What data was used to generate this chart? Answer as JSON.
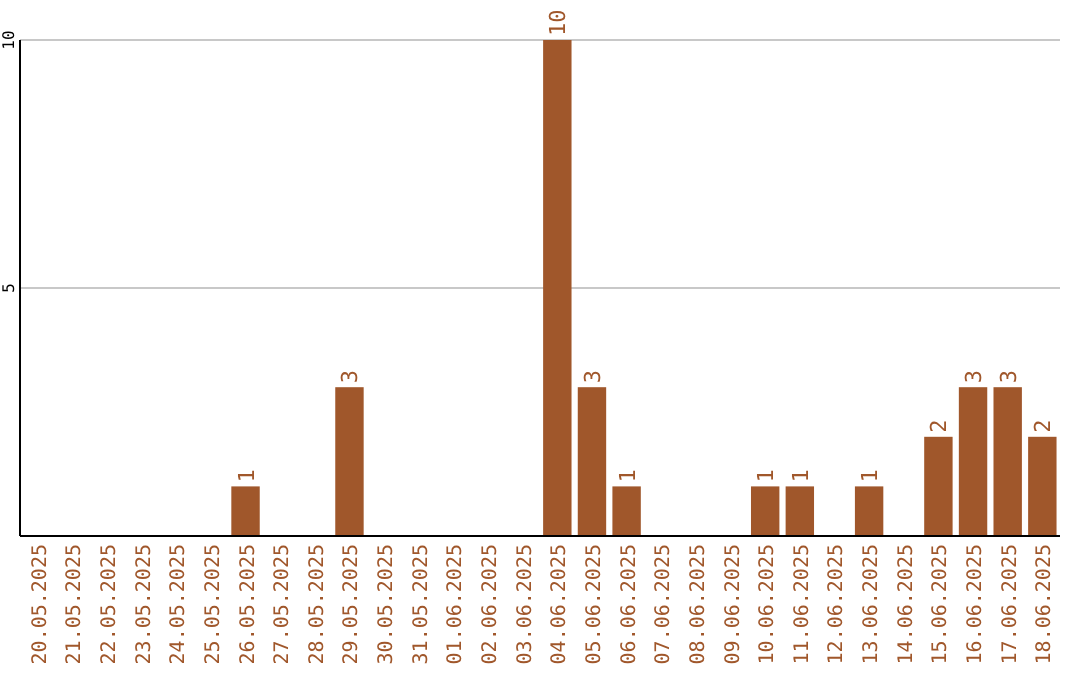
{
  "chart_data": {
    "type": "bar",
    "categories": [
      "20.05.2025",
      "21.05.2025",
      "22.05.2025",
      "23.05.2025",
      "24.05.2025",
      "25.05.2025",
      "26.05.2025",
      "27.05.2025",
      "28.05.2025",
      "29.05.2025",
      "30.05.2025",
      "31.05.2025",
      "01.06.2025",
      "02.06.2025",
      "03.06.2025",
      "04.06.2025",
      "05.06.2025",
      "06.06.2025",
      "07.06.2025",
      "08.06.2025",
      "09.06.2025",
      "10.06.2025",
      "11.06.2025",
      "12.06.2025",
      "13.06.2025",
      "14.06.2025",
      "15.06.2025",
      "16.06.2025",
      "17.06.2025",
      "18.06.2025"
    ],
    "values": [
      0,
      0,
      0,
      0,
      0,
      0,
      1,
      0,
      0,
      3,
      0,
      0,
      0,
      0,
      0,
      10,
      3,
      1,
      0,
      0,
      0,
      1,
      1,
      0,
      1,
      0,
      2,
      3,
      3,
      2
    ],
    "value_labels": [
      null,
      null,
      null,
      null,
      null,
      null,
      "1",
      null,
      null,
      "3",
      null,
      null,
      null,
      null,
      null,
      "10",
      "3",
      "1",
      null,
      null,
      null,
      "1",
      "1",
      null,
      "1",
      null,
      "2",
      "3",
      "3",
      "2"
    ],
    "color": "#a0572b",
    "ylim": [
      0,
      10
    ],
    "yticks": [
      {
        "value": 0,
        "label": null
      },
      5,
      10
    ],
    "grid": "y"
  }
}
